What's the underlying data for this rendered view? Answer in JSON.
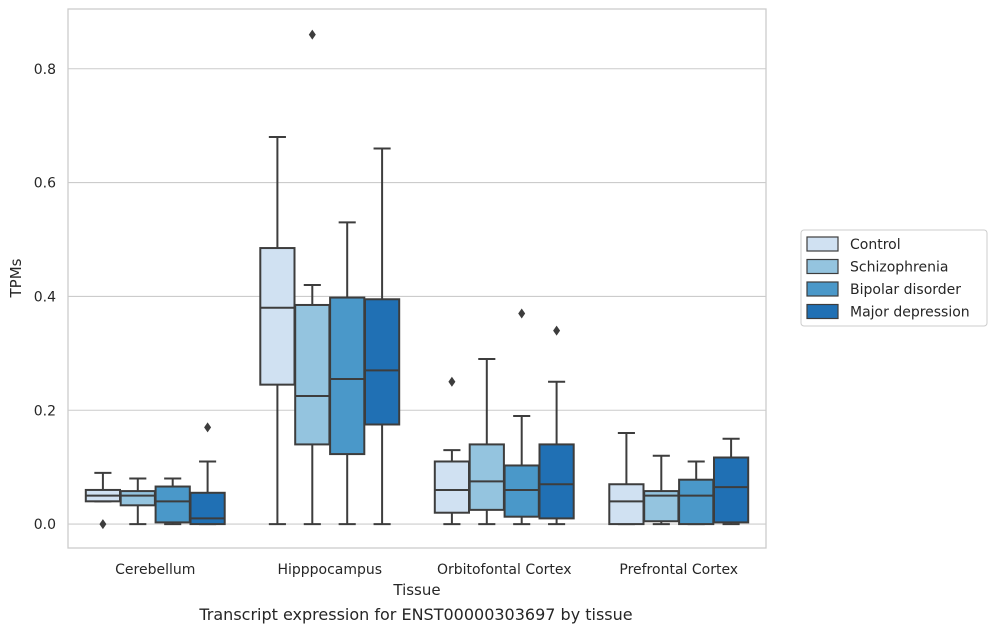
{
  "caption": "Transcript expression for ENST00000303697 by tissue",
  "chart_data": {
    "type": "box",
    "xlabel": "Tissue",
    "ylabel": "TPMs",
    "ylim": [
      -0.042,
      0.905
    ],
    "yticks": [
      "0.0",
      "0.2",
      "0.4",
      "0.6",
      "0.8"
    ],
    "grid": true,
    "legend_position": "outside right",
    "categories": [
      "Cerebellum",
      "Hipppocampus",
      "Orbitofontal Cortex",
      "Prefrontal Cortex"
    ],
    "series": [
      {
        "name": "Control",
        "color": "#d0e1f2",
        "boxes": [
          {
            "whisker_low": 0.04,
            "q1": 0.04,
            "median": 0.05,
            "q3": 0.06,
            "whisker_high": 0.09,
            "outliers": [
              0.0
            ]
          },
          {
            "whisker_low": 0.0,
            "q1": 0.245,
            "median": 0.38,
            "q3": 0.485,
            "whisker_high": 0.68,
            "outliers": []
          },
          {
            "whisker_low": 0.0,
            "q1": 0.02,
            "median": 0.06,
            "q3": 0.11,
            "whisker_high": 0.13,
            "outliers": [
              0.25
            ]
          },
          {
            "whisker_low": 0.0,
            "q1": 0.0,
            "median": 0.04,
            "q3": 0.07,
            "whisker_high": 0.16,
            "outliers": []
          }
        ]
      },
      {
        "name": "Schizophrenia",
        "color": "#94c4df",
        "boxes": [
          {
            "whisker_low": 0.0,
            "q1": 0.033,
            "median": 0.05,
            "q3": 0.058,
            "whisker_high": 0.08,
            "outliers": []
          },
          {
            "whisker_low": 0.0,
            "q1": 0.14,
            "median": 0.225,
            "q3": 0.385,
            "whisker_high": 0.42,
            "outliers": [
              0.86
            ]
          },
          {
            "whisker_low": 0.0,
            "q1": 0.025,
            "median": 0.075,
            "q3": 0.14,
            "whisker_high": 0.29,
            "outliers": []
          },
          {
            "whisker_low": 0.0,
            "q1": 0.005,
            "median": 0.05,
            "q3": 0.058,
            "whisker_high": 0.12,
            "outliers": []
          }
        ]
      },
      {
        "name": "Bipolar disorder",
        "color": "#4a98c9",
        "boxes": [
          {
            "whisker_low": 0.0,
            "q1": 0.003,
            "median": 0.04,
            "q3": 0.066,
            "whisker_high": 0.08,
            "outliers": []
          },
          {
            "whisker_low": 0.0,
            "q1": 0.123,
            "median": 0.255,
            "q3": 0.398,
            "whisker_high": 0.53,
            "outliers": []
          },
          {
            "whisker_low": 0.0,
            "q1": 0.013,
            "median": 0.06,
            "q3": 0.103,
            "whisker_high": 0.19,
            "outliers": [
              0.37
            ]
          },
          {
            "whisker_low": 0.0,
            "q1": 0.0,
            "median": 0.05,
            "q3": 0.078,
            "whisker_high": 0.11,
            "outliers": []
          }
        ]
      },
      {
        "name": "Major depression",
        "color": "#2070b4",
        "boxes": [
          {
            "whisker_low": 0.0,
            "q1": 0.0,
            "median": 0.01,
            "q3": 0.055,
            "whisker_high": 0.11,
            "outliers": [
              0.17
            ]
          },
          {
            "whisker_low": 0.0,
            "q1": 0.175,
            "median": 0.27,
            "q3": 0.395,
            "whisker_high": 0.66,
            "outliers": []
          },
          {
            "whisker_low": 0.0,
            "q1": 0.01,
            "median": 0.07,
            "q3": 0.14,
            "whisker_high": 0.25,
            "outliers": [
              0.34
            ]
          },
          {
            "whisker_low": 0.0,
            "q1": 0.003,
            "median": 0.065,
            "q3": 0.117,
            "whisker_high": 0.15,
            "outliers": []
          }
        ]
      }
    ]
  }
}
